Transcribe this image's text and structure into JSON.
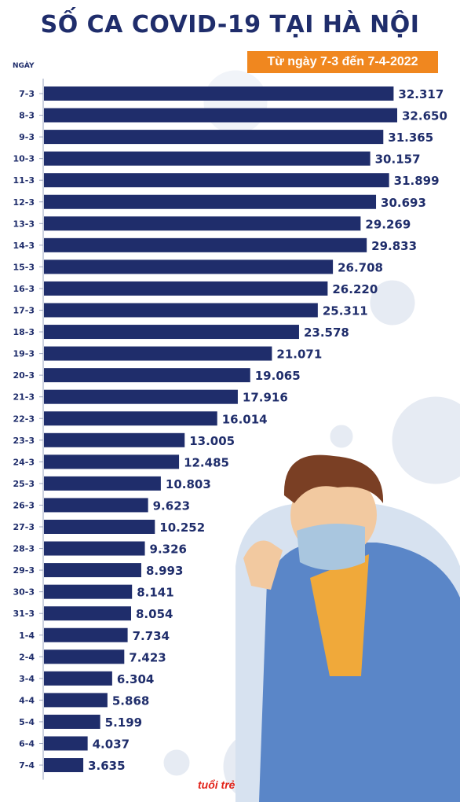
{
  "header": {
    "title": "SỐ CA COVID-19 TẠI HÀ NỘI",
    "subtitle": "Từ ngày 7-3 đến 7-4-2022"
  },
  "brand": {
    "logo_text": "tuổi trẻ"
  },
  "colors": {
    "bar": "#1f2d6b",
    "title": "#1f2d6b",
    "accent": "#f0871f",
    "logo": "#e2231a"
  },
  "chart_data": {
    "type": "bar",
    "orientation": "horizontal",
    "title": "SỐ CA COVID-19 TẠI HÀ NỘI",
    "subtitle": "Từ ngày 7-3 đến 7-4-2022",
    "ylabel": "NGÀY",
    "xlabel": "",
    "categories": [
      "7-3",
      "8-3",
      "9-3",
      "10-3",
      "11-3",
      "12-3",
      "13-3",
      "14-3",
      "15-3",
      "16-3",
      "17-3",
      "18-3",
      "19-3",
      "20-3",
      "21-3",
      "22-3",
      "23-3",
      "24-3",
      "25-3",
      "26-3",
      "27-3",
      "28-3",
      "29-3",
      "30-3",
      "31-3",
      "1-4",
      "2-4",
      "3-4",
      "4-4",
      "5-4",
      "6-4",
      "7-4"
    ],
    "values": [
      32317,
      32650,
      31365,
      30157,
      31899,
      30693,
      29269,
      29833,
      26708,
      26220,
      25311,
      23578,
      21071,
      19065,
      17916,
      16014,
      13005,
      12485,
      10803,
      9623,
      10252,
      9326,
      8993,
      8141,
      8054,
      7734,
      7423,
      6304,
      5868,
      5199,
      4037,
      3635
    ],
    "value_labels": [
      "32.317",
      "32.650",
      "31.365",
      "30.157",
      "31.899",
      "30.693",
      "29.269",
      "29.833",
      "26.708",
      "26.220",
      "25.311",
      "23.578",
      "21.071",
      "19.065",
      "17.916",
      "16.014",
      "13.005",
      "12.485",
      "10.803",
      "9.623",
      "10.252",
      "9.326",
      "8.993",
      "8.141",
      "8.054",
      "7.734",
      "7.423",
      "6.304",
      "5.868",
      "5.199",
      "4.037",
      "3.635"
    ],
    "xlim": [
      0,
      32650
    ],
    "grid": false,
    "legend": "none"
  }
}
